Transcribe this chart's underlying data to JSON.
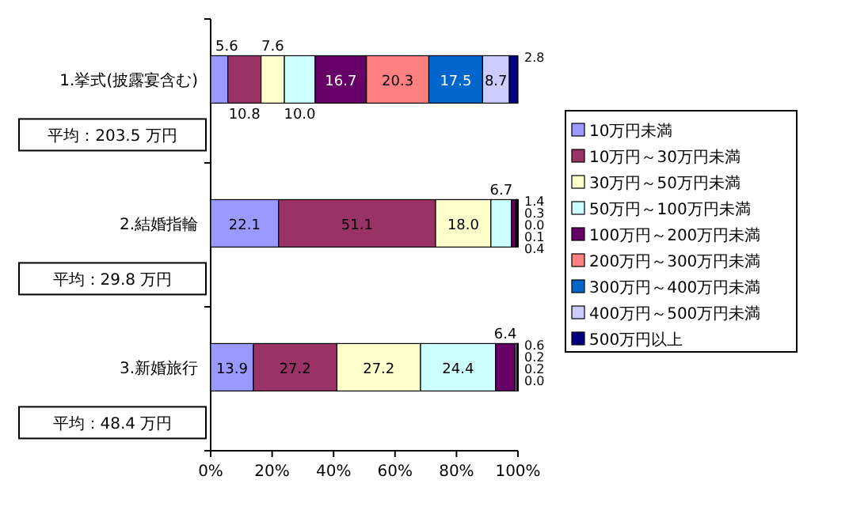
{
  "chart_data": {
    "type": "bar",
    "orientation": "horizontal",
    "stacked": true,
    "categories": [
      "1.挙式(披露宴含む)",
      "2.結婚指輪",
      "3.新婚旅行"
    ],
    "series": [
      {
        "name": "10万円未満",
        "color": "#9999ff",
        "values": [
          5.6,
          22.1,
          13.9
        ],
        "value_labels": [
          "5.6",
          "22.1",
          "13.9"
        ]
      },
      {
        "name": "10万円～30万円未満",
        "color": "#993366",
        "values": [
          10.8,
          51.1,
          27.2
        ],
        "value_labels": [
          "10.8",
          "51.1",
          "27.2"
        ]
      },
      {
        "name": "30万円～50万円未満",
        "color": "#ffffcc",
        "values": [
          7.6,
          18.0,
          27.2
        ],
        "value_labels": [
          "7.6",
          "18.0",
          "27.2"
        ]
      },
      {
        "name": "50万円～100万円未満",
        "color": "#ccffff",
        "values": [
          10.0,
          6.7,
          24.4
        ],
        "value_labels": [
          "10.0",
          "6.7",
          "24.4"
        ]
      },
      {
        "name": "100万円～200万円未満",
        "color": "#660066",
        "values": [
          16.7,
          1.4,
          6.4
        ],
        "value_labels": [
          "16.7",
          "1.4",
          "6.4"
        ]
      },
      {
        "name": "200万円～300万円未満",
        "color": "#ff8080",
        "values": [
          20.3,
          0.3,
          0.6
        ],
        "value_labels": [
          "20.3",
          "0.3",
          "0.6"
        ]
      },
      {
        "name": "300万円～400万円未満",
        "color": "#0066cc",
        "values": [
          17.5,
          0.0,
          0.2
        ],
        "value_labels": [
          "17.5",
          "0.0",
          "0.2"
        ]
      },
      {
        "name": "400万円～500万円未満",
        "color": "#ccccff",
        "values": [
          8.7,
          0.1,
          0.2
        ],
        "value_labels": [
          "8.7",
          "0.1",
          "0.2"
        ]
      },
      {
        "name": "500万円以上",
        "color": "#000080",
        "values": [
          2.8,
          0.4,
          0.0
        ],
        "value_labels": [
          "2.8",
          "0.4",
          "0.0"
        ]
      }
    ],
    "xlim": [
      0,
      100
    ],
    "xticks": [
      {
        "value": 0,
        "label": "0%"
      },
      {
        "value": 20,
        "label": "20%"
      },
      {
        "value": 40,
        "label": "40%"
      },
      {
        "value": 60,
        "label": "60%"
      },
      {
        "value": 80,
        "label": "80%"
      },
      {
        "value": 100,
        "label": "100%"
      }
    ],
    "annotations": [
      "平均：203.5 万円",
      "平均：29.8 万円",
      "平均：48.4 万円"
    ],
    "legend": "right",
    "grid": false
  }
}
